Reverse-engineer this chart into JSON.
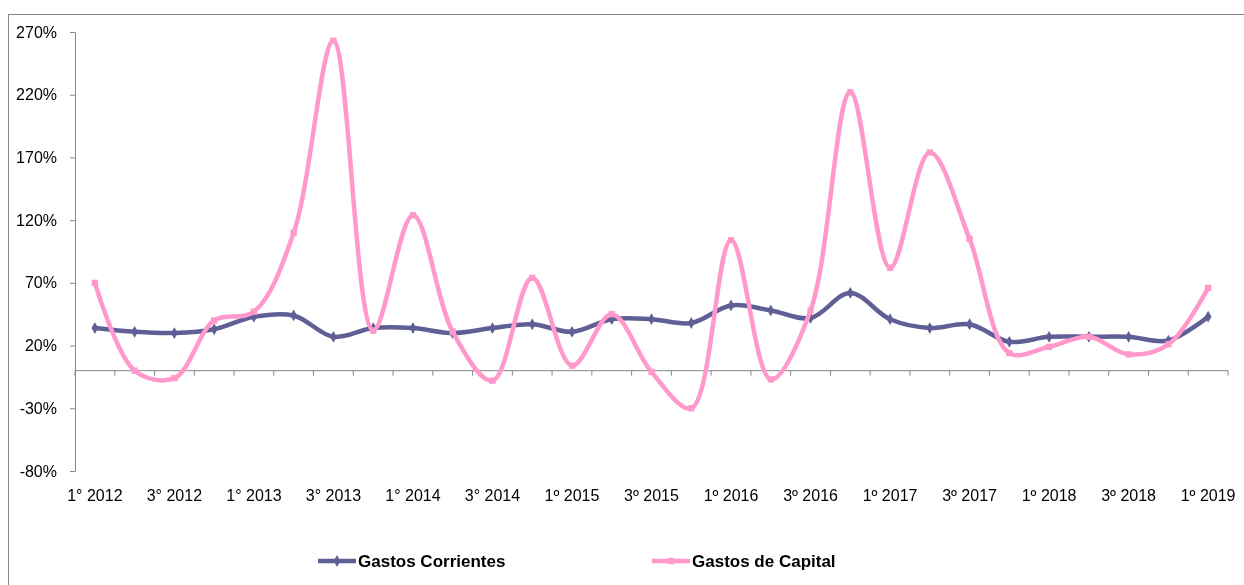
{
  "chart_data": {
    "type": "line",
    "categories": [
      "1° 2012",
      null,
      "3° 2012",
      null,
      "1° 2013",
      null,
      "3° 2013",
      null,
      "1° 2014",
      null,
      "3° 2014",
      null,
      "1º 2015",
      null,
      "3º 2015",
      null,
      "1º 2016",
      null,
      "3º 2016",
      null,
      "1º 2017",
      null,
      "3º 2017",
      null,
      "1º 2018",
      null,
      "3º 2018",
      null,
      "1º 2019"
    ],
    "series": [
      {
        "name": "Gastos Corrientes",
        "color": "#5f5f96",
        "marker": "diamond",
        "values": [
          34,
          31,
          30,
          33,
          43,
          44,
          27,
          34,
          34,
          30,
          34,
          37,
          31,
          41,
          41,
          38,
          52,
          48,
          42,
          62,
          41,
          34,
          37,
          23,
          27,
          27,
          27,
          24,
          43
        ]
      },
      {
        "name": "Gastos de Capital",
        "color": "#ff99cc",
        "marker": "square",
        "values": [
          70,
          0,
          -6,
          40,
          47,
          110,
          263,
          32,
          124,
          31,
          -8,
          74,
          4,
          45,
          -1,
          -30,
          104,
          -7,
          48,
          222,
          82,
          174,
          105,
          14,
          19,
          27,
          13,
          21,
          66
        ]
      }
    ],
    "ylim": [
      -80,
      270
    ],
    "yticks": [
      {
        "value": -80,
        "label": "-80%"
      },
      {
        "value": -30,
        "label": "-30%"
      },
      {
        "value": 20,
        "label": "20%"
      },
      {
        "value": 70,
        "label": "70%"
      },
      {
        "value": 120,
        "label": "120%"
      },
      {
        "value": 170,
        "label": "170%"
      },
      {
        "value": 220,
        "label": "220%"
      },
      {
        "value": 270,
        "label": "270%"
      }
    ],
    "grid": false,
    "legend": "bottom",
    "line_style": "solid"
  }
}
